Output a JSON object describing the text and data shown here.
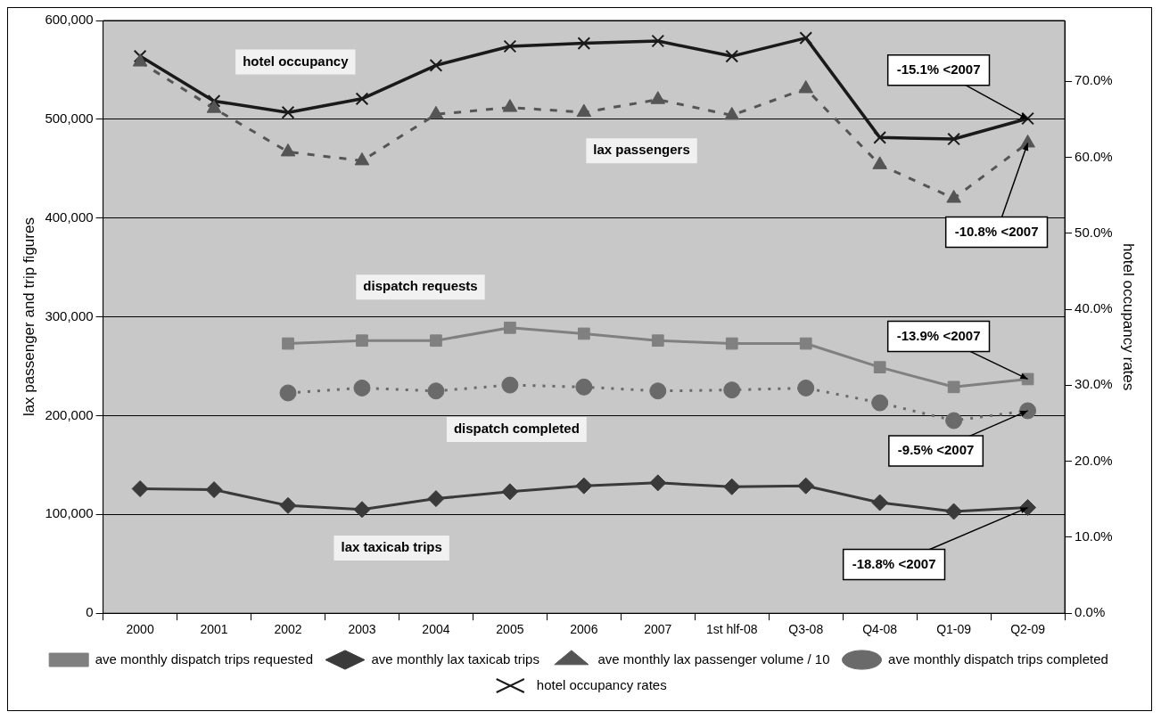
{
  "chart_data": {
    "type": "line",
    "ylabel": "lax passenger and trip figures",
    "y2label": "hotel occupancy rates",
    "categories": [
      "2000",
      "2001",
      "2002",
      "2003",
      "2004",
      "2005",
      "2006",
      "2007",
      "1st hlf-08",
      "Q3-08",
      "Q4-08",
      "Q1-09",
      "Q2-09"
    ],
    "series": [
      {
        "name": "ave monthly dispatch trips requested",
        "color": "#808080",
        "marker": "square",
        "line_style": "solid",
        "values": [
          null,
          null,
          273000,
          276000,
          276000,
          289000,
          283000,
          276000,
          273000,
          273000,
          249000,
          229000,
          237000
        ]
      },
      {
        "name": "ave monthly lax taxicab trips",
        "color": "#3a3a3a",
        "marker": "diamond",
        "line_style": "solid",
        "values": [
          126000,
          125000,
          109000,
          105000,
          116000,
          123000,
          129000,
          132000,
          128000,
          129000,
          112000,
          103000,
          107000
        ]
      },
      {
        "name": "ave monthly lax passenger volume / 10",
        "color": "#555555",
        "marker": "triangle",
        "line_style": "dashed",
        "values": [
          558000,
          511000,
          467000,
          458000,
          505000,
          512000,
          507000,
          520000,
          504000,
          531000,
          454000,
          420000,
          476000
        ]
      },
      {
        "name": "ave monthly dispatch trips completed",
        "color": "#6a6a6a",
        "marker": "circle",
        "line_style": "dotted",
        "values": [
          null,
          null,
          223000,
          228000,
          225000,
          231000,
          229000,
          225000,
          226000,
          228000,
          213000,
          195000,
          205000
        ]
      },
      {
        "name": "hotel occupancy rates",
        "color": "#1a1a1a",
        "marker": "cross",
        "line_style": "solid",
        "axis": "y2",
        "values": [
          73.3,
          67.4,
          65.9,
          67.7,
          72.1,
          74.6,
          75.0,
          75.3,
          73.3,
          75.7,
          62.6,
          62.4,
          65.1
        ]
      }
    ],
    "ylim": [
      0,
      600000
    ],
    "yticks": [
      0,
      {
        "value": 100000,
        "label": "100,000"
      },
      {
        "value": 200000,
        "label": "200,000"
      },
      {
        "value": 300000,
        "label": "300,000"
      },
      {
        "value": 400000,
        "label": "400,000"
      },
      {
        "value": 500000,
        "label": "500,000"
      },
      {
        "value": 600000,
        "label": "600,000"
      }
    ],
    "y2lim": [
      0,
      78
    ],
    "y2ticks": [
      {
        "value": 0,
        "label": "0.0%"
      },
      {
        "value": 10,
        "label": "10.0%"
      },
      {
        "value": 20,
        "label": "20.0%"
      },
      {
        "value": 30,
        "label": "30.0%"
      },
      {
        "value": 40,
        "label": "40.0%"
      },
      {
        "value": 50,
        "label": "50.0%"
      },
      {
        "value": 60,
        "label": "60.0%"
      },
      {
        "value": 70,
        "label": "70.0%"
      }
    ],
    "grid": "y",
    "legend": "bottom",
    "annotations": [
      "hotel occupancy",
      "lax passengers",
      "dispatch requests",
      "dispatch completed",
      "lax taxicab trips",
      {
        "text": "-15.1% <2007",
        "x": "Q2-09",
        "y": 500000
      },
      {
        "text": "-10.8% <2007",
        "x": "Q2-09",
        "y": 476000
      },
      {
        "text": "-13.9% <2007",
        "x": "Q2-09",
        "y": 237000
      },
      {
        "text": "-9.5% <2007",
        "x": "Q2-09",
        "y": 205000
      },
      {
        "text": "-18.8% <2007",
        "x": "Q2-09",
        "y": 107000
      }
    ]
  }
}
